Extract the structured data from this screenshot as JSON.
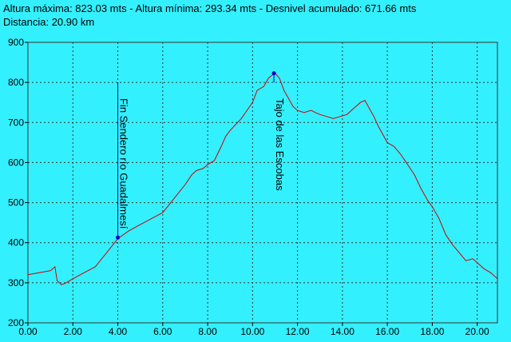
{
  "header": {
    "line1": "Altura máxima: 823.03 mts - Altura mínima: 293.34 mts - Desnivel acumulado: 671.66 mts",
    "line2": "Distancia: 20.90 km"
  },
  "chart_data": {
    "type": "line",
    "xlim": [
      0,
      20.9
    ],
    "ylim": [
      200,
      900
    ],
    "x_ticks": [
      "0.00",
      "2.00",
      "4.00",
      "6.00",
      "8.00",
      "10.00",
      "12.00",
      "14.00",
      "16.00",
      "18.00",
      "20.00"
    ],
    "y_ticks": [
      "200",
      "300",
      "400",
      "500",
      "600",
      "700",
      "800",
      "900"
    ],
    "grid": true,
    "colors": {
      "line": "#cc0000",
      "marker": "#0000cc",
      "grid": "#333333",
      "background": "#33f0ff"
    },
    "series": [
      {
        "x": [
          0,
          0.5,
          1.0,
          1.2,
          1.3,
          1.5,
          1.7,
          2.0,
          2.5,
          3.0,
          3.5,
          4.0,
          4.5,
          5.0,
          5.5,
          6.0,
          6.5,
          7.0,
          7.3,
          7.5,
          7.8,
          8.0,
          8.3,
          8.6,
          8.8,
          9.0,
          9.5,
          10.0,
          10.2,
          10.5,
          10.7,
          10.8,
          11.0,
          11.2,
          11.4,
          11.6,
          11.8,
          12.0,
          12.3,
          12.6,
          12.8,
          13.0,
          13.3,
          13.6,
          13.9,
          14.2,
          14.5,
          14.8,
          15.0,
          15.2,
          15.4,
          15.6,
          15.8,
          16.0,
          16.3,
          16.6,
          16.9,
          17.2,
          17.5,
          17.8,
          18.0,
          18.3,
          18.6,
          18.9,
          19.2,
          19.5,
          19.8,
          20.0,
          20.3,
          20.6,
          20.9
        ],
        "y": [
          320,
          325,
          330,
          340,
          305,
          295,
          300,
          310,
          325,
          340,
          375,
          410,
          430,
          445,
          460,
          475,
          510,
          545,
          570,
          580,
          585,
          595,
          605,
          640,
          665,
          680,
          710,
          750,
          780,
          790,
          810,
          815,
          823,
          810,
          780,
          760,
          740,
          730,
          725,
          730,
          725,
          720,
          715,
          710,
          715,
          720,
          735,
          750,
          755,
          735,
          715,
          690,
          670,
          650,
          640,
          620,
          595,
          570,
          535,
          505,
          490,
          460,
          420,
          395,
          375,
          355,
          360,
          350,
          335,
          325,
          310
        ]
      }
    ],
    "annotations": [
      {
        "label": "Fin Sendero río Guadalmesí",
        "x": 4.0,
        "y": 413
      },
      {
        "label": "Tajo de las Escobas",
        "x": 10.95,
        "y": 823
      }
    ]
  }
}
